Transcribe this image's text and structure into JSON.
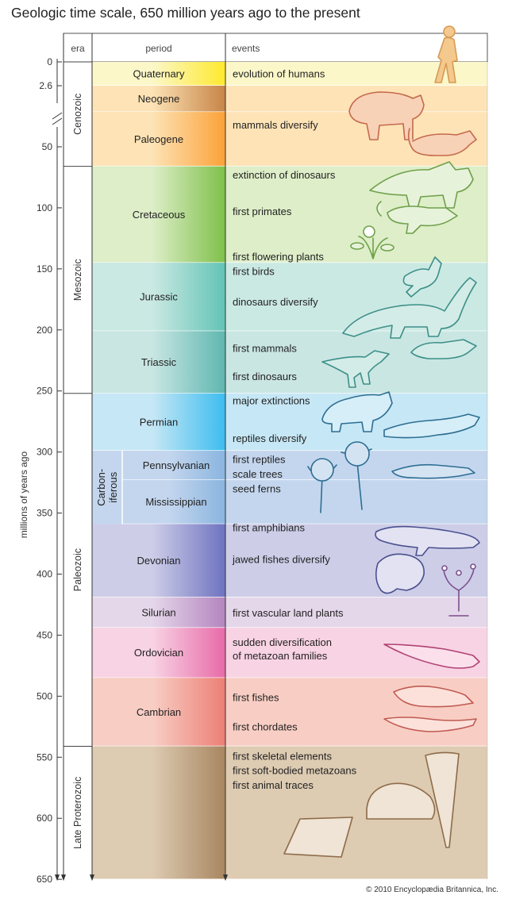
{
  "title": "Geologic time scale, 650 million years ago to the present",
  "credit": "© 2010 Encyclopædia Britannica, Inc.",
  "headers": {
    "era": "era",
    "period": "period",
    "events": "events"
  },
  "axis": {
    "label": "millions of years ago",
    "ticks": [
      0,
      2.6,
      50,
      100,
      150,
      200,
      250,
      300,
      350,
      400,
      450,
      500,
      550,
      600,
      650
    ],
    "tick_labels": [
      "0",
      "2.6",
      "50",
      "100",
      "150",
      "200",
      "250",
      "300",
      "350",
      "400",
      "450",
      "500",
      "550",
      "600",
      "650"
    ]
  },
  "eras": [
    {
      "name": "Cenozoic",
      "start": 0,
      "end": 66
    },
    {
      "name": "Mesozoic",
      "start": 66,
      "end": 252
    },
    {
      "name": "Paleozoic",
      "start": 252,
      "end": 541
    },
    {
      "name": "Late Proterozoic",
      "start": 541,
      "end": 650
    }
  ],
  "periods": [
    {
      "name": "Quaternary",
      "start": 0,
      "end": 2.6,
      "color": "#ffe92e",
      "light": "#fbf7c9"
    },
    {
      "name": "Neogene",
      "start": 2.6,
      "end": 23,
      "color": "#c78447",
      "light": "#fde3b6"
    },
    {
      "name": "Paleogene",
      "start": 23,
      "end": 66,
      "color": "#fba238",
      "light": "#fde3b6"
    },
    {
      "name": "Cretaceous",
      "start": 66,
      "end": 145,
      "color": "#7fc04a",
      "light": "#ddeec8"
    },
    {
      "name": "Jurassic",
      "start": 145,
      "end": 201,
      "color": "#62c3b5",
      "light": "#cbe9e3"
    },
    {
      "name": "Triassic",
      "start": 201,
      "end": 252,
      "color": "#5fb7b0",
      "light": "#c9e6e3"
    },
    {
      "name": "Permian",
      "start": 252,
      "end": 299,
      "color": "#3cbdef",
      "light": "#c6e7f5"
    },
    {
      "name": "Pennsylvanian",
      "start": 299,
      "end": 323,
      "color": "#8ab5df",
      "light": "#c4d6ee"
    },
    {
      "name": "Mississippian",
      "start": 323,
      "end": 359,
      "color": "#8ab5df",
      "light": "#c4d6ee"
    },
    {
      "name": "Devonian",
      "start": 359,
      "end": 419,
      "color": "#6e73c0",
      "light": "#cdcde8"
    },
    {
      "name": "Silurian",
      "start": 419,
      "end": 444,
      "color": "#b485bf",
      "light": "#e5d7ea"
    },
    {
      "name": "Ordovician",
      "start": 444,
      "end": 485,
      "color": "#e86aa9",
      "light": "#f8d3e3"
    },
    {
      "name": "Cambrian",
      "start": 485,
      "end": 541,
      "color": "#ec7f75",
      "light": "#f8cec4"
    },
    {
      "name": "",
      "start": 541,
      "end": 650,
      "color": "#a88660",
      "light": "#ddcbb2"
    }
  ],
  "carboniferous": {
    "label_line1": "Carbon-",
    "label_line2": "iferous",
    "start": 299,
    "end": 359
  },
  "events": [
    {
      "text": "evolution of humans",
      "at": 1.3
    },
    {
      "text": "mammals diversify",
      "at": 33
    },
    {
      "text": "extinction of dinosaurs",
      "at": 73
    },
    {
      "text": "first primates",
      "at": 103
    },
    {
      "text": "first flowering plants",
      "at": 140
    },
    {
      "text": "first birds",
      "at": 152
    },
    {
      "text": "dinosaurs diversify",
      "at": 177
    },
    {
      "text": "first mammals",
      "at": 215
    },
    {
      "text": "first dinosaurs",
      "at": 238
    },
    {
      "text": "major extinctions",
      "at": 258
    },
    {
      "text": "reptiles diversify",
      "at": 289
    },
    {
      "text": "first reptiles",
      "at": 306
    },
    {
      "text": "scale trees",
      "at": 318
    },
    {
      "text": "seed ferns",
      "at": 330
    },
    {
      "text": "first amphibians",
      "at": 362
    },
    {
      "text": "jawed fishes diversify",
      "at": 388
    },
    {
      "text": "first vascular land plants",
      "at": 432
    },
    {
      "text": "sudden diversification",
      "at": 456
    },
    {
      "text": "of metazoan families",
      "at": 467
    },
    {
      "text": "first fishes",
      "at": 501
    },
    {
      "text": "first chordates",
      "at": 525
    },
    {
      "text": "first skeletal elements",
      "at": 549
    },
    {
      "text": "first soft-bodied metazoans",
      "at": 561
    },
    {
      "text": "first animal traces",
      "at": 573
    }
  ],
  "illustrations": [
    {
      "name": "human-icon",
      "color": "#d89a55",
      "at": 0
    },
    {
      "name": "rhinoceros-icon",
      "color": "#c46a4d",
      "at": 30
    },
    {
      "name": "mammal-icon",
      "color": "#c46a4d",
      "at": 45
    },
    {
      "name": "triceratops-icon",
      "color": "#6fa04a",
      "at": 95
    },
    {
      "name": "primate-icon",
      "color": "#6fa04a",
      "at": 120
    },
    {
      "name": "flower-icon",
      "color": "#6fa04a",
      "at": 140
    },
    {
      "name": "bird-icon",
      "color": "#3d8f88",
      "at": 160
    },
    {
      "name": "sauropod-icon",
      "color": "#3d8f88",
      "at": 190
    },
    {
      "name": "small-mammal-icon",
      "color": "#3d8f88",
      "at": 215
    },
    {
      "name": "dinosaur-icon",
      "color": "#3d8f88",
      "at": 240
    },
    {
      "name": "reptile-icon",
      "color": "#2d6e93",
      "at": 270
    },
    {
      "name": "lizard-icon",
      "color": "#2d6e93",
      "at": 290
    },
    {
      "name": "scale-tree-icon",
      "color": "#2d6e93",
      "at": 320
    },
    {
      "name": "amphibian-icon",
      "color": "#4a4f8e",
      "at": 370
    },
    {
      "name": "fish-icon",
      "color": "#4a4f8e",
      "at": 400
    },
    {
      "name": "plant-icon",
      "color": "#7d4f8c",
      "at": 430
    },
    {
      "name": "nautiloid-icon",
      "color": "#b14174",
      "at": 465
    },
    {
      "name": "trilobite-icon",
      "color": "#c05a52",
      "at": 500
    },
    {
      "name": "chordate-icon",
      "color": "#c05a52",
      "at": 525
    },
    {
      "name": "shell-icon",
      "color": "#8e6b49",
      "at": 600
    }
  ]
}
